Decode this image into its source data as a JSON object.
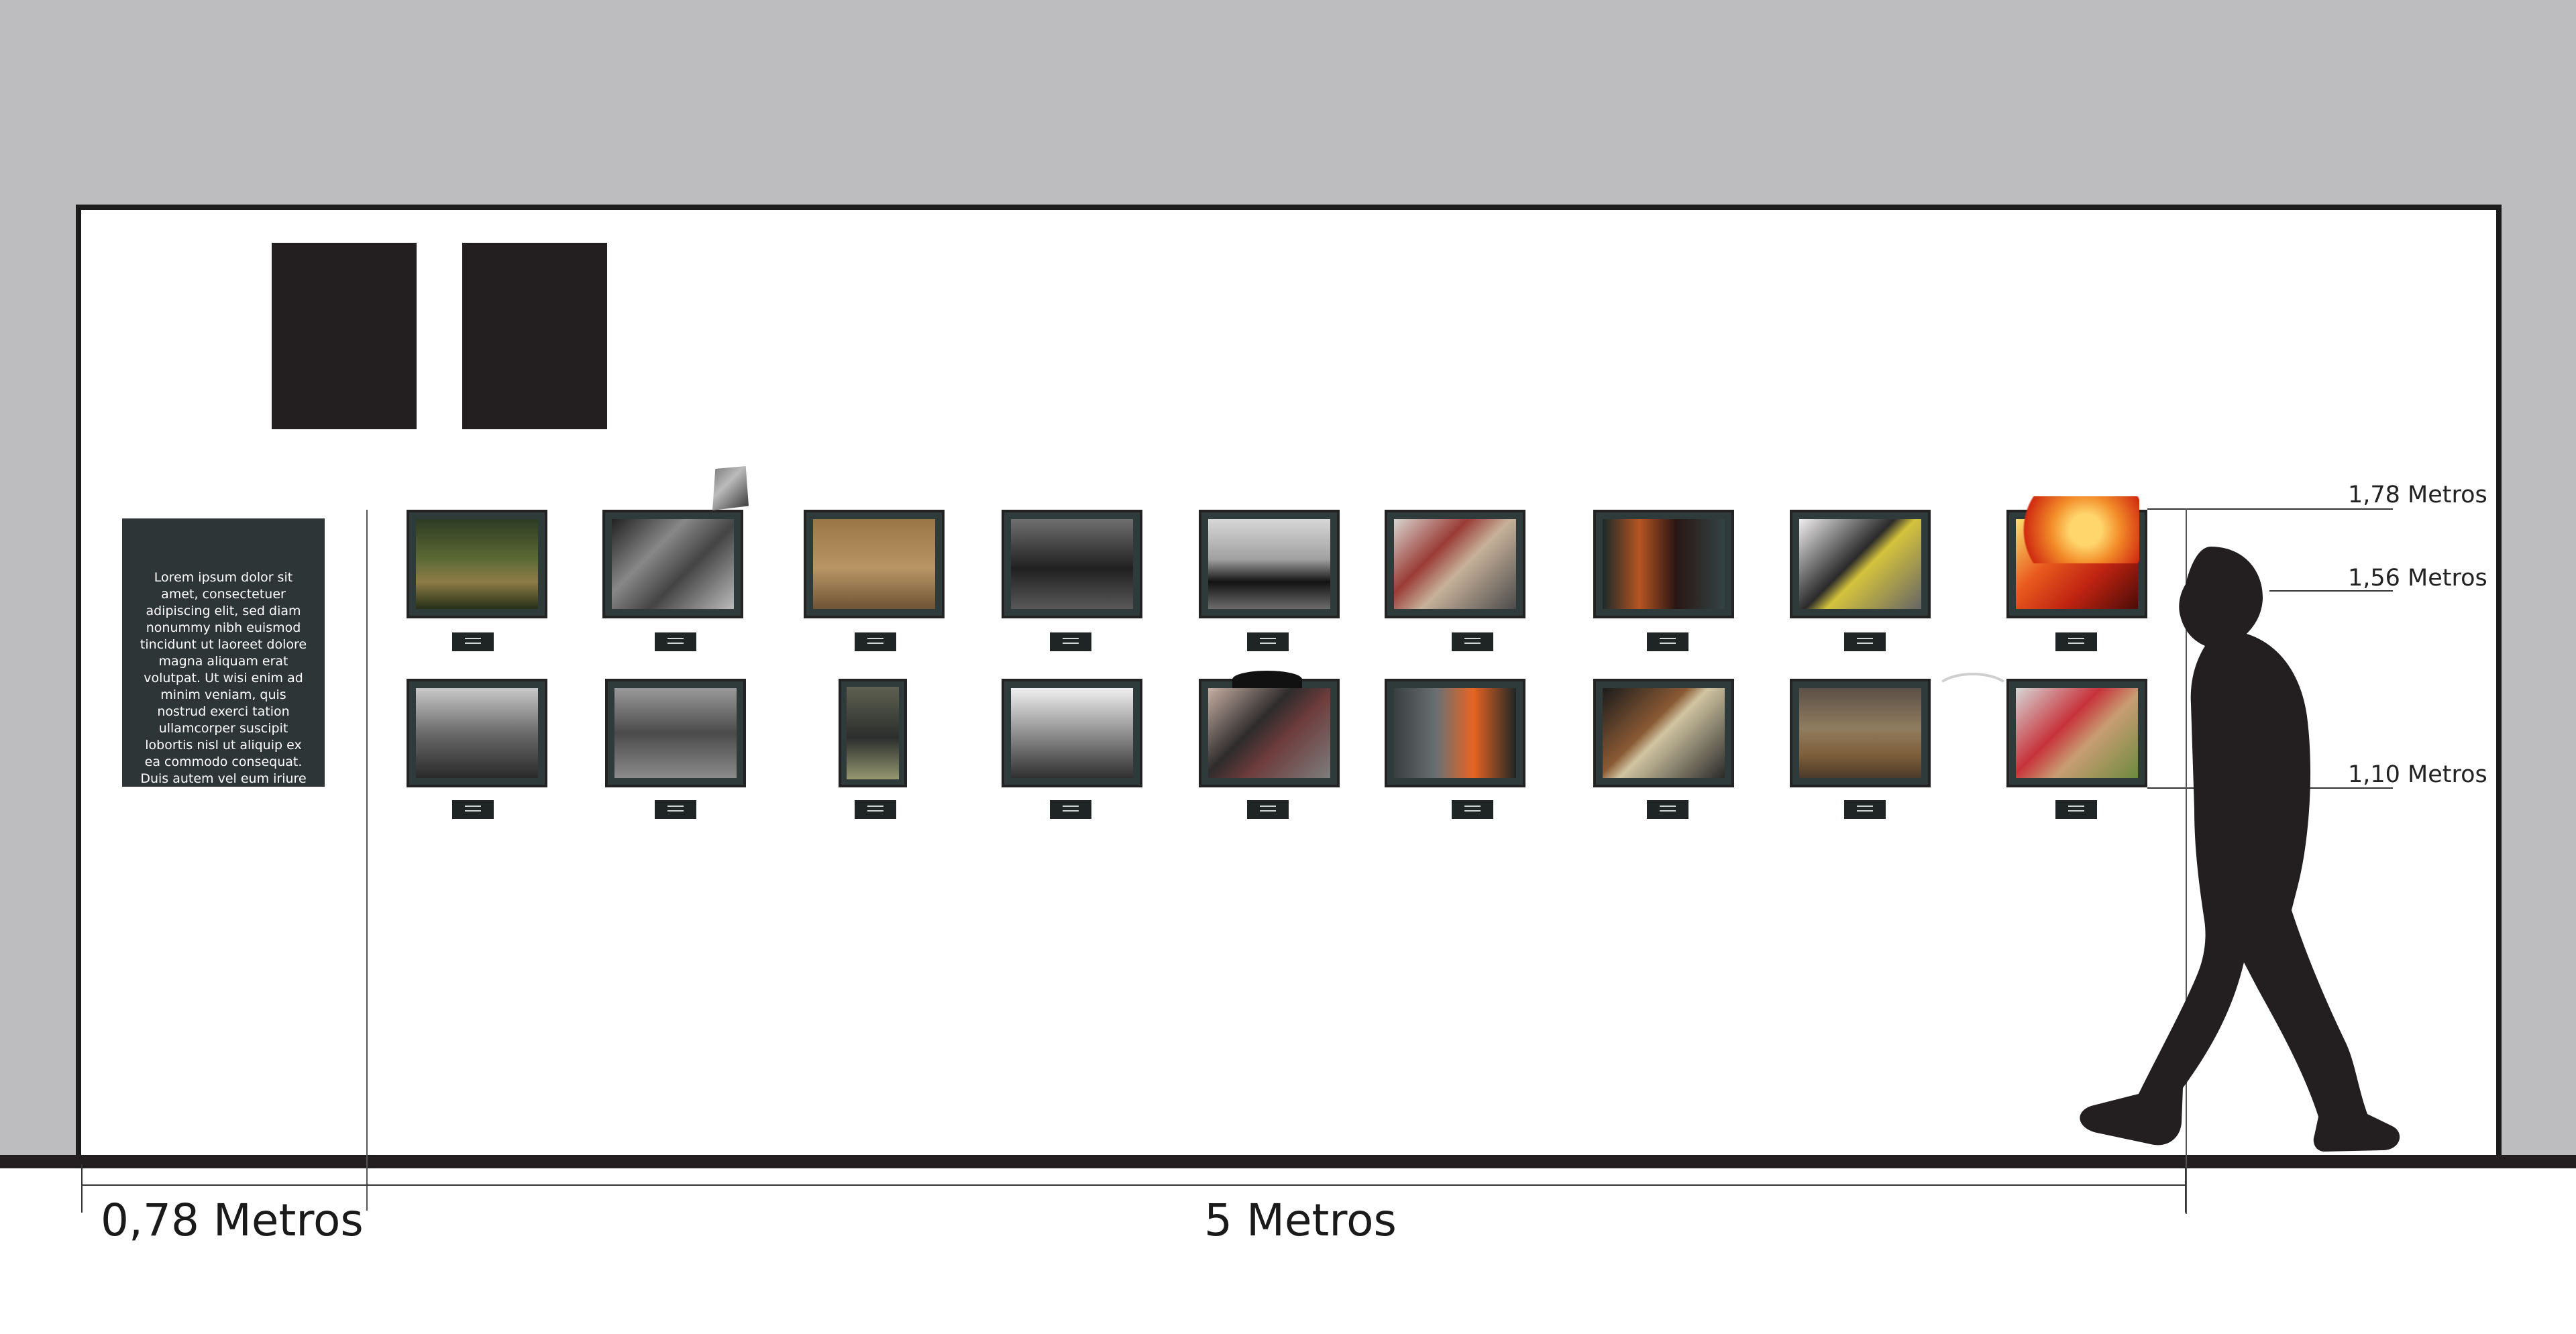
{
  "panel": {
    "text": "Lorem ipsum dolor sit amet, consectetuer adipiscing elit, sed diam nonummy nibh euismod tincidunt ut laoreet dolore magna aliquam erat volutpat. Ut wisi enim ad minim veniam, quis nostrud exerci tation ullamcorper suscipit lobortis nisl ut aliquip ex ea commodo consequat. Duis autem vel eum iriure dolor in hendre-"
  },
  "heights": {
    "h1": "1,78 Metros",
    "h2": "1,56 Metros",
    "h3": "1,10 Metros"
  },
  "widths": {
    "left": "0,78 Metros",
    "main": "5 Metros"
  },
  "colors": {
    "wall": "#ffffff",
    "background": "#bdbdbf",
    "frame": "#2f3a3a",
    "silhouette": "#231f20"
  }
}
